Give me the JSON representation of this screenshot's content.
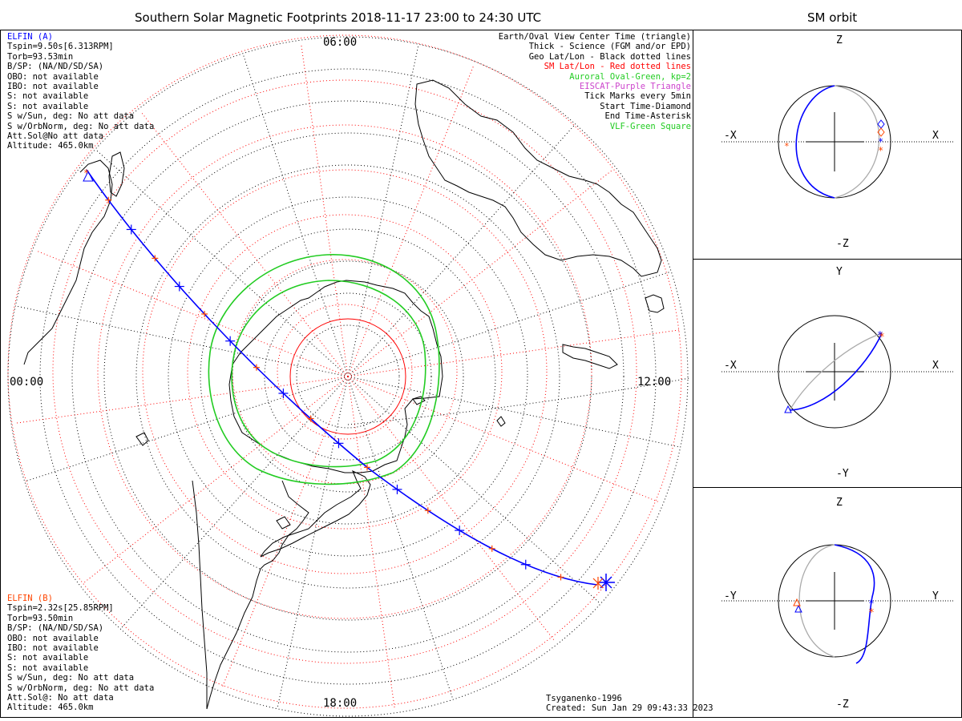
{
  "header": {
    "main_title": "Southern Solar Magnetic Footprints 2018-11-17 23:00 to 24:30 UTC",
    "side_title": "SM orbit"
  },
  "colors": {
    "elfin_a": "#0000ff",
    "elfin_b": "#ff4500",
    "sm_grid": "#ff0000",
    "auroral_oval": "#22cc22",
    "eiscat": "#cc44cc",
    "orbit_gray": "#aaaaaa"
  },
  "elfin_a": {
    "name": "ELFIN (A)",
    "lines": [
      "Tspin=9.50s[6.313RPM]",
      "Torb=93.53min",
      "B/SP: (NA/ND/SD/SA)",
      "OBO: not available",
      "IBO: not available",
      "S: not available",
      "S: not available",
      "S w/Sun, deg: No att data",
      "S w/OrbNorm, deg: No att data",
      "Att.Sol@No att data",
      "Altitude: 465.0km"
    ]
  },
  "elfin_b": {
    "name": "ELFIN (B)",
    "lines": [
      "Tspin=2.32s[25.85RPM]",
      "Torb=93.50min",
      "B/SP: (NA/ND/SD/SA)",
      "OBO: not available",
      "IBO: not available",
      "S: not available",
      "S: not available",
      "S w/Sun, deg: No att data",
      "S w/OrbNorm, deg: No att data",
      "Att.Sol@: No att data",
      "Altitude: 465.0km"
    ]
  },
  "legend": [
    {
      "text": "Earth/Oval View Center Time (triangle)",
      "color": "#000000"
    },
    {
      "text": "Thick - Science (FGM and/or EPD)",
      "color": "#000000"
    },
    {
      "text": "Geo Lat/Lon - Black dotted lines",
      "color": "#000000"
    },
    {
      "text": "SM Lat/Lon - Red dotted lines",
      "color": "#ff0000"
    },
    {
      "text": "Auroral Oval-Green, kp=2",
      "color": "#22cc22"
    },
    {
      "text": "EISCAT-Purple Triangle",
      "color": "#cc44cc"
    },
    {
      "text": "Tick Marks every 5min",
      "color": "#000000"
    },
    {
      "text": "Start Time-Diamond",
      "color": "#000000"
    },
    {
      "text": "End Time-Asterisk",
      "color": "#000000"
    },
    {
      "text": "VLF-Green Square",
      "color": "#22cc22"
    }
  ],
  "map_labels": {
    "top": "06:00",
    "left": "00:00",
    "right": "12:00",
    "bottom": "18:00"
  },
  "footer": {
    "model": "Tsyganenko-1996",
    "created": "Created: Sun Jan 29 09:43:33 2023"
  },
  "panels": [
    {
      "up": "Z",
      "down": "-Z",
      "left": "-X",
      "right": "X"
    },
    {
      "up": "Y",
      "down": "-Y",
      "left": "-X",
      "right": "X"
    },
    {
      "up": "Z",
      "down": "-Z",
      "left": "-Y",
      "right": "Y"
    }
  ]
}
